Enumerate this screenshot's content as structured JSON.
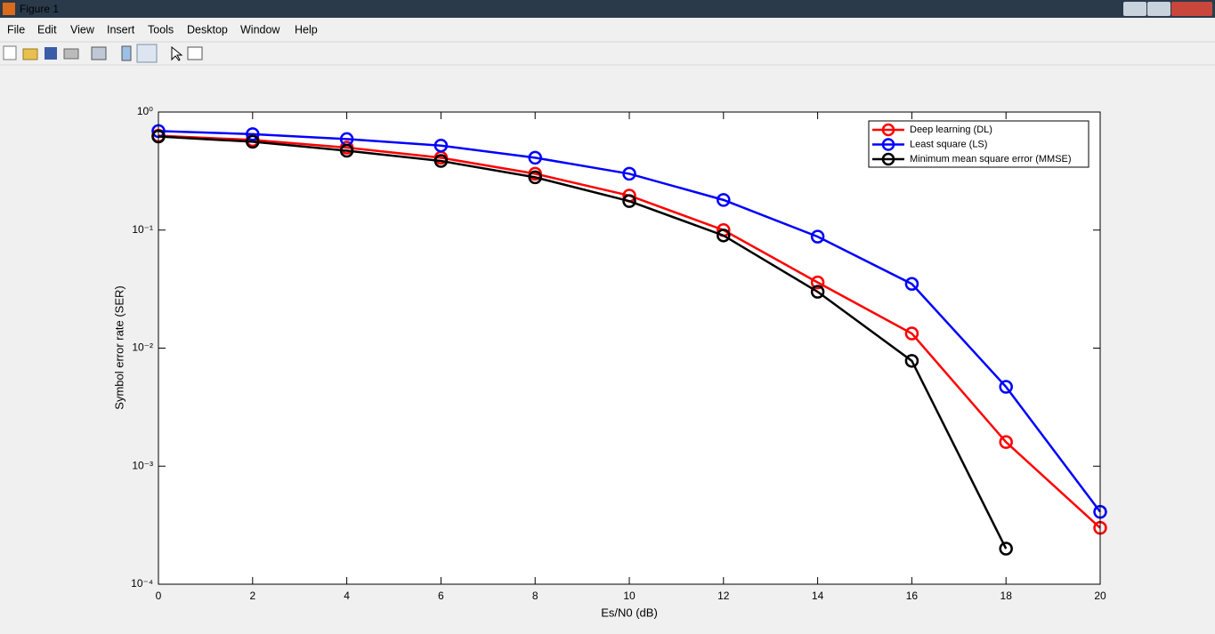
{
  "window": {
    "title": "Figure 1",
    "menu": [
      "File",
      "Edit",
      "View",
      "Insert",
      "Tools",
      "Desktop",
      "Window",
      "Help"
    ]
  },
  "chart_data": {
    "type": "line",
    "xlabel": "Es/N0 (dB)",
    "ylabel": "Symbol error rate (SER)",
    "x": [
      0,
      2,
      4,
      6,
      8,
      10,
      12,
      14,
      16,
      18,
      20
    ],
    "xlim": [
      0,
      20
    ],
    "xticks": [
      0,
      2,
      4,
      6,
      8,
      10,
      12,
      14,
      16,
      18,
      20
    ],
    "ylim": [
      0.0001,
      1
    ],
    "log_y": true,
    "yticks": [
      {
        "value": 0.0001,
        "label": "10⁻⁴"
      },
      {
        "value": 0.001,
        "label": "10⁻³"
      },
      {
        "value": 0.01,
        "label": "10⁻²"
      },
      {
        "value": 0.1,
        "label": "10⁻¹"
      },
      {
        "value": 1,
        "label": "10⁰"
      }
    ],
    "legend": "upper right",
    "marker": "circle",
    "series": [
      {
        "name": "Deep learning (DL)",
        "color": "#ff0000",
        "values": [
          0.63,
          0.58,
          0.5,
          0.41,
          0.3,
          0.196,
          0.1,
          0.036,
          0.0133,
          0.0016,
          0.0003
        ]
      },
      {
        "name": "Least square (LS)",
        "color": "#0000ff",
        "values": [
          0.69,
          0.65,
          0.59,
          0.52,
          0.41,
          0.3,
          0.18,
          0.088,
          0.035,
          0.0047,
          0.00041
        ]
      },
      {
        "name": "Minimum mean square error (MMSE)",
        "color": "#000000",
        "values": [
          0.62,
          0.56,
          0.47,
          0.385,
          0.28,
          0.176,
          0.09,
          0.03,
          0.0078,
          0.0002,
          null
        ]
      }
    ]
  }
}
